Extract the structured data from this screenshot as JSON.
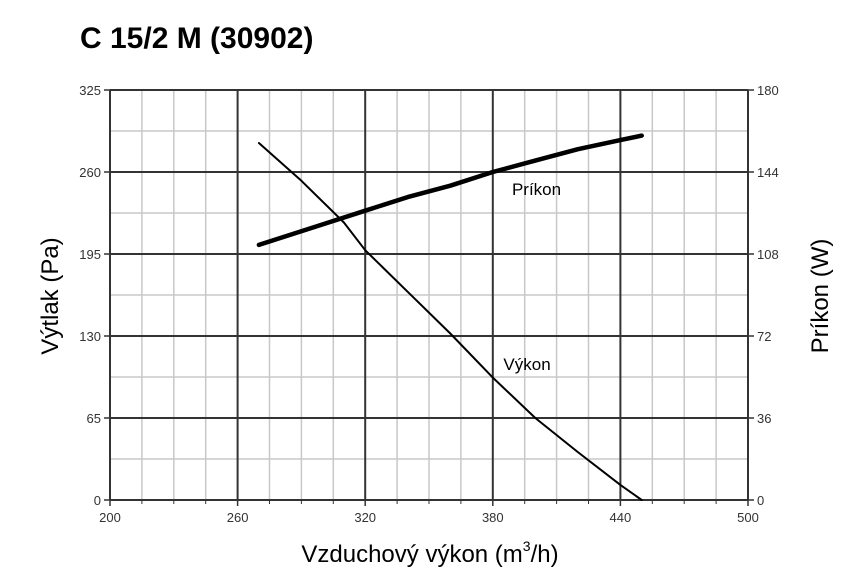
{
  "chart_data": {
    "type": "line",
    "title": "C 15/2 M (30902)",
    "xlabel_main": "Vzduchový výkon (m",
    "xlabel_sup": "3",
    "xlabel_end": "/h)",
    "ylabel_left": "Výtlak (Pa)",
    "ylabel_right": "Príkon (W)",
    "xlim": [
      200,
      500
    ],
    "ylim_left": [
      0,
      325
    ],
    "ylim_right": [
      0,
      180
    ],
    "xticks": [
      200,
      260,
      320,
      380,
      440,
      500
    ],
    "yticks_left": [
      0,
      65,
      130,
      195,
      260,
      325
    ],
    "yticks_right": [
      0,
      36,
      72,
      108,
      144,
      180
    ],
    "grid": true,
    "series": [
      {
        "name": "Výkon",
        "axis": "left",
        "x": [
          270,
          290,
          310,
          320,
          340,
          360,
          380,
          400,
          420,
          440,
          450
        ],
        "y": [
          283,
          253,
          220,
          198,
          165,
          132,
          97,
          65,
          38,
          12,
          0
        ]
      },
      {
        "name": "Príkon",
        "axis": "right",
        "x": [
          270,
          300,
          320,
          340,
          360,
          380,
          400,
          420,
          440,
          450
        ],
        "y": [
          112,
          121,
          127,
          133,
          138,
          144,
          149,
          154,
          158,
          160
        ]
      }
    ]
  }
}
